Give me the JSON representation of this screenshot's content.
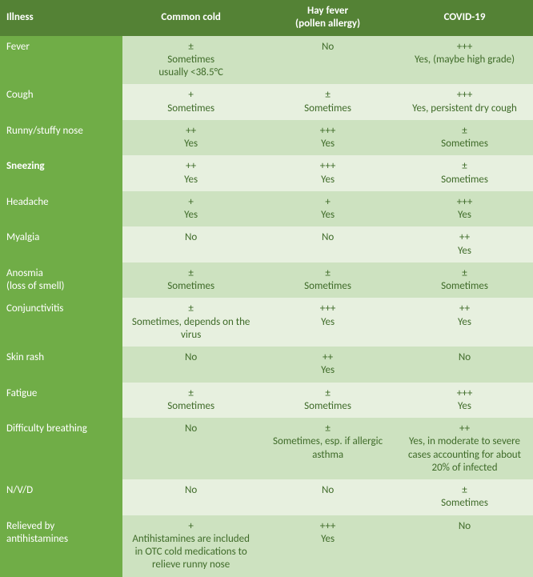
{
  "colors": {
    "header_bg": "#548235",
    "rowlabel_bg": "#70ad47",
    "row_even_bg": "#cde2c0",
    "row_odd_bg": "#e7f0df",
    "text_light": "#ffffff",
    "text_cell": "#3f6b29"
  },
  "font": {
    "family": "Calibri",
    "size_pt": 10
  },
  "table": {
    "columns": [
      "Illness",
      "Common cold",
      "Hay fever\n(pollen allergy)",
      "COVID-19"
    ],
    "rows": [
      {
        "label": "Fever",
        "bold": false,
        "cells": [
          "±\nSometimes\nusually <38.5°C",
          "No",
          "+++\nYes, (maybe high grade)"
        ]
      },
      {
        "label": "Cough",
        "bold": false,
        "cells": [
          "+\nSometimes",
          "±\nSometimes",
          "+++\nYes, persistent dry cough"
        ]
      },
      {
        "label": "Runny/stuffy nose",
        "bold": false,
        "cells": [
          "++\nYes",
          "+++\nYes",
          "±\nSometimes"
        ]
      },
      {
        "label": "Sneezing",
        "bold": true,
        "cells": [
          "++\nYes",
          "+++\nYes",
          "±\nSometimes"
        ]
      },
      {
        "label": "Headache",
        "bold": false,
        "cells": [
          "+\nYes",
          "+\nYes",
          "+++\nYes"
        ]
      },
      {
        "label": "Myalgia",
        "bold": false,
        "cells": [
          "No",
          "No",
          "++\nYes"
        ]
      },
      {
        "label": "Anosmia\n(loss of smell)",
        "bold": false,
        "cells": [
          "±\nSometimes",
          "±\nSometimes",
          "±\nSometimes"
        ]
      },
      {
        "label": "Conjunctivitis",
        "bold": false,
        "cells": [
          "±\nSometimes, depends on the virus",
          "+++\nYes",
          "++\nYes"
        ]
      },
      {
        "label": "Skin rash",
        "bold": false,
        "cells": [
          "No",
          "++\nYes",
          "No"
        ]
      },
      {
        "label": "Fatigue",
        "bold": false,
        "cells": [
          "±\nSometimes",
          "±\nSometimes",
          "+++\nYes"
        ]
      },
      {
        "label": "Difficulty breathing",
        "bold": false,
        "cells": [
          "No",
          "±\nSometimes, esp. if allergic asthma",
          "++\nYes, in moderate to severe cases accounting for about 20% of infected"
        ]
      },
      {
        "label": "N/V/D",
        "bold": false,
        "cells": [
          "No",
          "No",
          "±\nSometimes"
        ]
      },
      {
        "label": "Relieved by antihistamines",
        "bold": false,
        "cells": [
          "+\nAntihistamines are included in OTC cold medications to relieve runny nose",
          "+++\nYes",
          "No"
        ]
      }
    ]
  }
}
